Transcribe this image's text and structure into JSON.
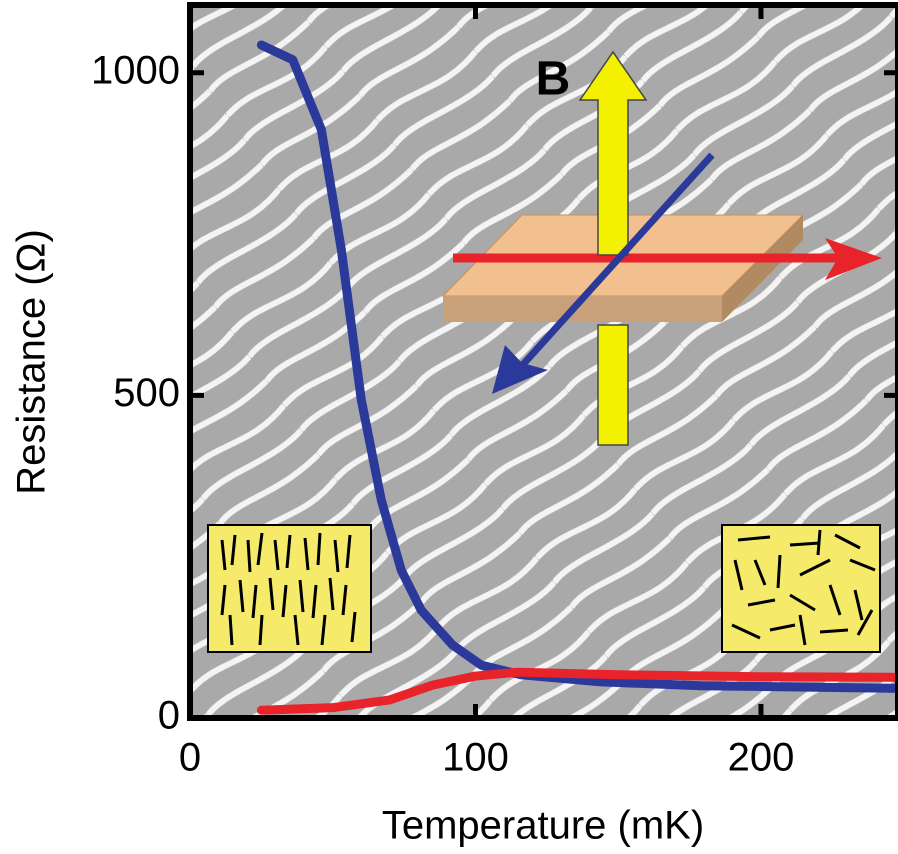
{
  "chart_data": {
    "type": "line",
    "xlabel": "Temperature (mK)",
    "ylabel": "Resistance   (Ω)",
    "annotation": "B",
    "xlim": [
      0,
      248
    ],
    "ylim": [
      0,
      1105
    ],
    "xticks": [
      0,
      100,
      200
    ],
    "yticks": [
      0,
      500,
      1000
    ],
    "series": [
      {
        "color": "#2b3a9a",
        "x": [
          25,
          36,
          46,
          53,
          60,
          67,
          74,
          81,
          92,
          102,
          116,
          144,
          179,
          248
        ],
        "values": [
          1043,
          1020,
          912,
          726,
          493,
          338,
          229,
          167,
          113,
          82,
          67,
          56,
          50,
          46
        ]
      },
      {
        "color": "#e8232a",
        "x": [
          25,
          50,
          70,
          85,
          100,
          115,
          150,
          200,
          248
        ],
        "values": [
          12,
          16,
          28,
          51,
          65,
          71,
          67,
          64,
          63
        ]
      }
    ]
  }
}
